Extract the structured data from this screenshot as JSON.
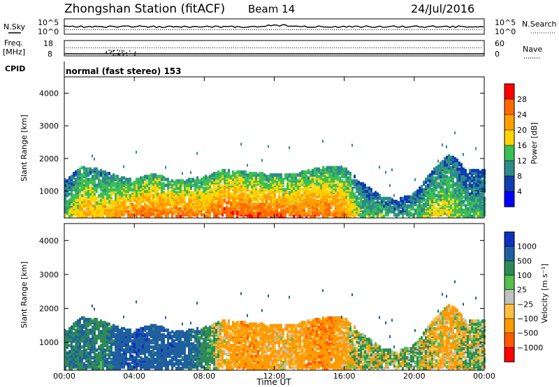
{
  "header": {
    "station": "Zhongshan Station (fitACF)",
    "beam": "Beam 14",
    "date": "24/Jul/2016"
  },
  "top_panels": {
    "nsky_label": "N.Sky",
    "nsky_ticks": [
      "10^5",
      "10^0"
    ],
    "nsearch_label": "N.Search",
    "nsearch_ticks": [
      "10^5",
      "10^0"
    ],
    "freq_label_1": "Freq.",
    "freq_label_2": "[MHz]",
    "freq_ticks": [
      "18",
      "8"
    ],
    "nave_label": "Nave",
    "nave_ticks": [
      "60",
      "0"
    ],
    "cpid_label": "CPID",
    "cpid_text": "normal (fast stereo) 153"
  },
  "chart_data": [
    {
      "type": "heatmap",
      "name": "power",
      "ylabel": "Slant Range [km]",
      "yticks": [
        "4000",
        "3000",
        "2000",
        "1000"
      ],
      "ylim": [
        180,
        4500
      ],
      "colorbar": {
        "label": "Power [dB]",
        "ticks": [
          "28",
          "24",
          "20",
          "16",
          "12",
          "8",
          "4"
        ],
        "colors": [
          "#0000ff",
          "#0f3fae",
          "#2e8b8b",
          "#3bbf55",
          "#ffd400",
          "#ffa000",
          "#ff6a00",
          "#ff0000"
        ]
      },
      "x": [
        "00:00",
        "01:00",
        "02:00",
        "03:00",
        "04:00",
        "05:00",
        "06:00",
        "07:00",
        "08:00",
        "09:00",
        "10:00",
        "11:00",
        "12:00",
        "13:00",
        "14:00",
        "15:00",
        "16:00",
        "17:00",
        "18:00",
        "19:00",
        "20:00",
        "21:00",
        "22:00",
        "23:00"
      ],
      "echo_band_top_km": [
        1300,
        1700,
        1600,
        1400,
        1300,
        1500,
        1300,
        1300,
        1400,
        1600,
        1550,
        1500,
        1450,
        1450,
        1600,
        1700,
        1650,
        1200,
        800,
        700,
        900,
        1600,
        2100,
        1600
      ],
      "peak_power_db": [
        14,
        22,
        20,
        24,
        26,
        26,
        26,
        26,
        24,
        28,
        28,
        27,
        27,
        26,
        27,
        26,
        24,
        14,
        16,
        12,
        14,
        18,
        18,
        14
      ]
    },
    {
      "type": "heatmap",
      "name": "velocity",
      "xlabel": "Time UT",
      "ylabel": "Slant Range [km]",
      "xticks": [
        "00:00",
        "04:00",
        "08:00",
        "12:00",
        "16:00",
        "20:00",
        "00:00"
      ],
      "yticks": [
        "4000",
        "3000",
        "2000",
        "1000"
      ],
      "ylim": [
        180,
        4500
      ],
      "colorbar": {
        "label": "Velocity [m s⁻¹]",
        "ticks": [
          "1000",
          "500",
          "100",
          "25",
          "−25",
          "−100",
          "−500",
          "−1000"
        ],
        "colors": [
          "#ff0000",
          "#ff5a00",
          "#ff9a00",
          "#ffc040",
          "#c0c0c0",
          "#55c04a",
          "#2e8b57",
          "#1f5f9f",
          "#1030c0"
        ]
      },
      "x": [
        "00:00",
        "01:00",
        "02:00",
        "03:00",
        "04:00",
        "05:00",
        "06:00",
        "07:00",
        "08:00",
        "09:00",
        "10:00",
        "11:00",
        "12:00",
        "13:00",
        "14:00",
        "15:00",
        "16:00",
        "17:00",
        "18:00",
        "19:00",
        "20:00",
        "21:00",
        "22:00",
        "23:00"
      ],
      "mean_velocity_ms": [
        400,
        500,
        300,
        800,
        900,
        700,
        800,
        700,
        300,
        -200,
        -300,
        -300,
        -200,
        -200,
        -300,
        -400,
        -200,
        100,
        0,
        100,
        100,
        -100,
        -200,
        100
      ]
    }
  ]
}
